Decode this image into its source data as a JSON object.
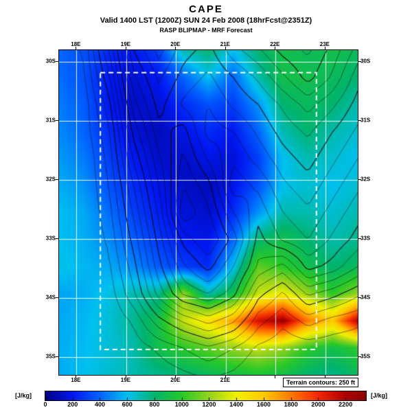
{
  "header": {
    "title": "CAPE",
    "valid_line": "Valid 1400 LST (1200Z) SUN 24 Feb 2008 (18hrFcst@2351Z)",
    "model_line": "RASP BLIPMAP - MRF Forecast"
  },
  "map": {
    "terrain_note": "Terrain contours: 250 ft"
  },
  "colorbar": {
    "unit": "[J/kg]",
    "tick_values": [
      0,
      200,
      400,
      600,
      800,
      1000,
      1200,
      1400,
      1600,
      1800,
      2000,
      2200
    ],
    "max_value": 2350
  },
  "chart_data": {
    "type": "heatmap",
    "title": "CAPE",
    "subtitle": "Valid 1400 LST (1200Z) SUN 24 Feb 2008 (18hrFcst@2351Z)",
    "source_line": "RASP BLIPMAP - MRF Forecast",
    "units": "J/kg",
    "grid_on": true,
    "legend_position": "bottom-colorbar",
    "lon_range": [
      17.65,
      23.65
    ],
    "lat_range": [
      29.8,
      35.3
    ],
    "x_tick_labels": [
      "18E",
      "19E",
      "20E",
      "21E",
      "22E",
      "23E"
    ],
    "x_tick_lons": [
      18,
      19,
      20,
      21,
      22,
      23
    ],
    "bottom_x_tick_count": 4,
    "y_tick_labels": [
      "30S",
      "31S",
      "32S",
      "33S",
      "34S",
      "35S"
    ],
    "y_tick_lats": [
      30,
      31,
      32,
      33,
      34,
      35
    ],
    "inner_domain": {
      "lon_min": 18.48,
      "lon_max": 22.82,
      "lat_min": 30.18,
      "lat_max": 34.87
    },
    "palette_stops": [
      {
        "v": 0,
        "c": "#000082"
      },
      {
        "v": 200,
        "c": "#0018f0"
      },
      {
        "v": 400,
        "c": "#0064ff"
      },
      {
        "v": 600,
        "c": "#00c0f0"
      },
      {
        "v": 800,
        "c": "#00b46e"
      },
      {
        "v": 1000,
        "c": "#28c828"
      },
      {
        "v": 1200,
        "c": "#96d21e"
      },
      {
        "v": 1400,
        "c": "#f0f000"
      },
      {
        "v": 1600,
        "c": "#ffc800"
      },
      {
        "v": 1800,
        "c": "#ff7800"
      },
      {
        "v": 2000,
        "c": "#f02800"
      },
      {
        "v": 2200,
        "c": "#aa0000"
      },
      {
        "v": 2350,
        "c": "#8c0000"
      }
    ],
    "cape_grid": {
      "lons": [
        17.65,
        18.15,
        18.65,
        19.15,
        19.65,
        20.15,
        20.65,
        21.15,
        21.65,
        22.15,
        22.65,
        23.15,
        23.65
      ],
      "lats": [
        29.8,
        30.26,
        30.72,
        31.18,
        31.63,
        32.09,
        32.55,
        33.01,
        33.47,
        33.93,
        34.38,
        34.84,
        35.3
      ],
      "values_jkg": [
        [
          400,
          350,
          250,
          200,
          300,
          700,
          800,
          600,
          800,
          900,
          850,
          900,
          850
        ],
        [
          420,
          350,
          200,
          150,
          200,
          400,
          600,
          400,
          700,
          900,
          900,
          850,
          800
        ],
        [
          450,
          380,
          200,
          120,
          150,
          250,
          350,
          300,
          500,
          800,
          850,
          800,
          700
        ],
        [
          480,
          400,
          250,
          150,
          100,
          180,
          250,
          200,
          400,
          700,
          800,
          700,
          650
        ],
        [
          520,
          450,
          300,
          200,
          130,
          120,
          180,
          150,
          300,
          600,
          700,
          650,
          600
        ],
        [
          560,
          500,
          350,
          250,
          180,
          120,
          100,
          180,
          350,
          600,
          650,
          600,
          650
        ],
        [
          600,
          550,
          420,
          300,
          220,
          160,
          130,
          250,
          500,
          700,
          700,
          650,
          700
        ],
        [
          600,
          560,
          480,
          380,
          280,
          200,
          180,
          400,
          800,
          900,
          800,
          700,
          750
        ],
        [
          620,
          580,
          550,
          480,
          380,
          300,
          250,
          600,
          1100,
          1000,
          900,
          800,
          850
        ],
        [
          540,
          560,
          620,
          700,
          750,
          1200,
          700,
          900,
          1300,
          1400,
          1200,
          1000,
          1200
        ],
        [
          550,
          580,
          640,
          750,
          900,
          1300,
          1500,
          1700,
          2100,
          2250,
          1800,
          1600,
          2200
        ],
        [
          560,
          590,
          640,
          700,
          900,
          1000,
          1100,
          1200,
          1300,
          1200,
          1000,
          900,
          1000
        ],
        [
          550,
          600,
          650,
          700,
          750,
          800,
          850,
          900,
          950,
          900,
          800,
          750,
          850
        ]
      ]
    },
    "terrain_contour_interval_ft": 250,
    "terrain_contour_min_ft": 250,
    "terrain_contour_max_ft": 4250,
    "terrain_grid_ft": [
      [
        0,
        300,
        1500,
        3000,
        3600,
        3100,
        2900,
        3400,
        3700,
        4100,
        4300,
        3900,
        3400
      ],
      [
        0,
        200,
        1200,
        2700,
        3300,
        2900,
        2700,
        3000,
        3300,
        3700,
        4100,
        3700,
        3100
      ],
      [
        0,
        100,
        900,
        2400,
        3100,
        2700,
        2500,
        2800,
        3000,
        3300,
        3600,
        3300,
        2900
      ],
      [
        0,
        100,
        700,
        2100,
        2900,
        3100,
        2400,
        2500,
        2800,
        3100,
        3300,
        3000,
        2700
      ],
      [
        0,
        0,
        600,
        1800,
        2700,
        3300,
        2700,
        2300,
        2600,
        2900,
        3100,
        2800,
        2500
      ],
      [
        0,
        0,
        500,
        1500,
        2500,
        3500,
        3100,
        2100,
        2300,
        2700,
        2900,
        2600,
        2300
      ],
      [
        0,
        0,
        400,
        1300,
        2300,
        3700,
        3300,
        2500,
        2100,
        2500,
        2700,
        2400,
        2100
      ],
      [
        0,
        0,
        300,
        1100,
        2100,
        3100,
        3500,
        2900,
        1900,
        2300,
        2500,
        2200,
        1900
      ],
      [
        0,
        0,
        200,
        900,
        1900,
        2700,
        3100,
        2500,
        1700,
        1400,
        2100,
        1900,
        1500
      ],
      [
        0,
        0,
        100,
        700,
        1600,
        2300,
        2500,
        2100,
        1100,
        700,
        1300,
        1100,
        800
      ],
      [
        0,
        0,
        0,
        300,
        900,
        1300,
        1600,
        1300,
        600,
        300,
        600,
        400,
        300
      ],
      [
        0,
        0,
        0,
        100,
        300,
        500,
        700,
        500,
        200,
        100,
        100,
        100,
        100
      ],
      [
        0,
        0,
        0,
        0,
        100,
        200,
        300,
        200,
        0,
        0,
        0,
        0,
        0
      ]
    ]
  }
}
